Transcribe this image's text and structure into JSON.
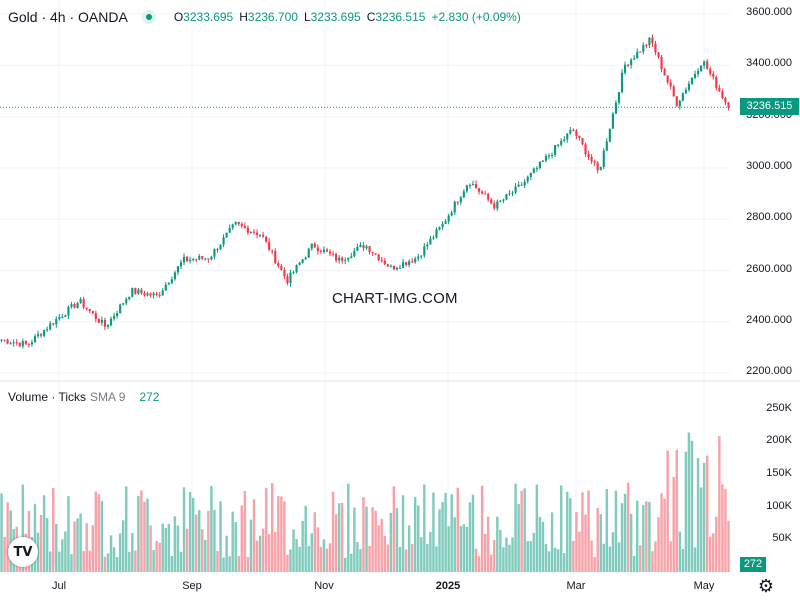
{
  "legend": {
    "symbol": "Gold · 4h · OANDA",
    "open_key": "O",
    "open": "3233.695",
    "high_key": "H",
    "high": "3236.700",
    "low_key": "L",
    "low": "3233.695",
    "close_key": "C",
    "close": "3236.515",
    "change": "+2.830 (+0.09%)"
  },
  "volume_legend": {
    "title": "Volume · Ticks",
    "sma": "SMA 9",
    "value": "272"
  },
  "watermark": "CHART-IMG.COM",
  "last_price_tag": "3236.515",
  "volume_tag": "272",
  "logo_text": "TV",
  "colors": {
    "up": "#089981",
    "down": "#f23645",
    "vol_up": "#7fcbbd",
    "vol_down": "#f7a1a8",
    "grid": "#f0f3fa"
  },
  "chart_data": {
    "type": "candlestick",
    "title": "Gold · 4h · OANDA",
    "price_axis": {
      "ticks": [
        "3600.000",
        "3400.000",
        "3200.000",
        "3000.000",
        "2800.000",
        "2600.000",
        "2400.000",
        "2200.000"
      ],
      "ylim": [
        2200,
        3600
      ]
    },
    "volume_axis": {
      "ticks": [
        "250K",
        "200K",
        "150K",
        "100K",
        "50K"
      ],
      "ylim": [
        0,
        260000
      ]
    },
    "x_axis": {
      "ticks": [
        "Jul",
        "Sep",
        "Nov",
        "2025",
        "Mar",
        "May"
      ],
      "bold": [
        "2025"
      ]
    },
    "last_price": 3236.515,
    "trend_keypoints": [
      {
        "t": "Jun",
        "v": 2330
      },
      {
        "t": "Jul",
        "v": 2310
      },
      {
        "t": "Jul",
        "v": 2400
      },
      {
        "t": "Aug",
        "v": 2480
      },
      {
        "t": "Aug",
        "v": 2380
      },
      {
        "t": "Aug",
        "v": 2520
      },
      {
        "t": "Sep",
        "v": 2500
      },
      {
        "t": "Sep",
        "v": 2640
      },
      {
        "t": "Oct",
        "v": 2650
      },
      {
        "t": "Oct",
        "v": 2780
      },
      {
        "t": "Nov",
        "v": 2740
      },
      {
        "t": "Nov",
        "v": 2560
      },
      {
        "t": "Nov",
        "v": 2700
      },
      {
        "t": "Dec",
        "v": 2640
      },
      {
        "t": "Dec",
        "v": 2700
      },
      {
        "t": "Dec",
        "v": 2610
      },
      {
        "t": "2025",
        "v": 2650
      },
      {
        "t": "Jan",
        "v": 2780
      },
      {
        "t": "Feb",
        "v": 2950
      },
      {
        "t": "Feb",
        "v": 2850
      },
      {
        "t": "Mar",
        "v": 2930
      },
      {
        "t": "Mar",
        "v": 3040
      },
      {
        "t": "Apr",
        "v": 3150
      },
      {
        "t": "Apr",
        "v": 2980
      },
      {
        "t": "Apr",
        "v": 3400
      },
      {
        "t": "Apr",
        "v": 3500
      },
      {
        "t": "May",
        "v": 3250
      },
      {
        "t": "May",
        "v": 3420
      },
      {
        "t": "May",
        "v": 3237
      }
    ]
  }
}
